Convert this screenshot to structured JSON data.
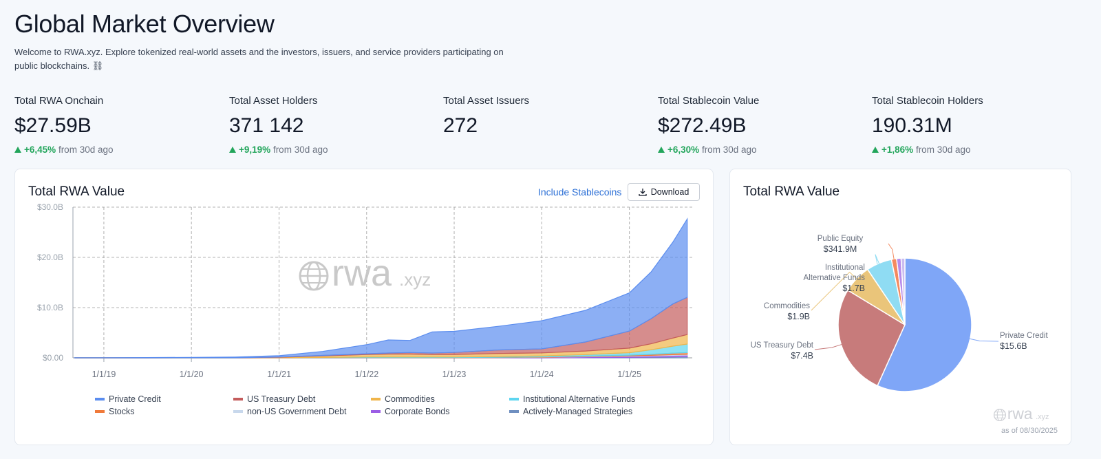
{
  "header": {
    "title": "Global Market Overview",
    "description": "Welcome to RWA.xyz. Explore tokenized real-world assets and the investors, issuers, and service providers participating on public blockchains. ⛓"
  },
  "stats": [
    {
      "label": "Total RWA Onchain",
      "value": "$27.59B",
      "change": "+6,45%",
      "period": "from 30d ago"
    },
    {
      "label": "Total Asset Holders",
      "value": "371 142",
      "change": "+9,19%",
      "period": "from 30d ago"
    },
    {
      "label": "Total Asset Issuers",
      "value": "272"
    },
    {
      "label": "Total Stablecoin Value",
      "value": "$272.49B",
      "change": "+6,30%",
      "period": "from 30d ago"
    },
    {
      "label": "Total Stablecoin Holders",
      "value": "190.31M",
      "change": "+1,86%",
      "period": "from 30d ago"
    }
  ],
  "controls": {
    "include_stablecoins": "Include Stablecoins",
    "download": "Download"
  },
  "watermark": {
    "name": "rwa",
    "suffix": ".xyz"
  },
  "as_of": "as of 08/30/2025",
  "chart_data": [
    {
      "type": "area",
      "stacked": true,
      "title": "Total RWA Value",
      "grid": true,
      "x": [
        "2018-09-01",
        "2019-01-01",
        "2019-07-01",
        "2020-01-01",
        "2020-07-01",
        "2021-01-01",
        "2021-07-01",
        "2022-01-01",
        "2022-04-01",
        "2022-07-01",
        "2022-10-01",
        "2023-01-01",
        "2023-07-01",
        "2024-01-01",
        "2024-07-01",
        "2025-01-01",
        "2025-04-01",
        "2025-07-01",
        "2025-08-30"
      ],
      "xlim": [
        "2018-08-25",
        "2025-09-20"
      ],
      "xticks": [
        {
          "value": "2019-01-01",
          "label": "1/1/19"
        },
        {
          "value": "2020-01-01",
          "label": "1/1/20"
        },
        {
          "value": "2021-01-01",
          "label": "1/1/21"
        },
        {
          "value": "2022-01-01",
          "label": "1/1/22"
        },
        {
          "value": "2023-01-01",
          "label": "1/1/23"
        },
        {
          "value": "2024-01-01",
          "label": "1/1/24"
        },
        {
          "value": "2025-01-01",
          "label": "1/1/25"
        }
      ],
      "ylim": [
        0,
        30
      ],
      "yticks": [
        {
          "value": 0,
          "label": "$0.00"
        },
        {
          "value": 10,
          "label": "$10.0B"
        },
        {
          "value": 20,
          "label": "$20.0B"
        },
        {
          "value": 30,
          "label": "$30.0B"
        }
      ],
      "series": [
        {
          "name": "Private Credit",
          "color": "#5b8def",
          "values": [
            0.02,
            0.03,
            0.05,
            0.08,
            0.15,
            0.25,
            0.8,
            1.8,
            2.6,
            2.4,
            4.2,
            4.2,
            4.7,
            5.6,
            6.3,
            7.6,
            9.3,
            12.3,
            15.6
          ]
        },
        {
          "name": "US Treasury Debt",
          "color": "#c45c5c",
          "values": [
            0,
            0,
            0,
            0,
            0,
            0.05,
            0.1,
            0.15,
            0.2,
            0.3,
            0.3,
            0.4,
            0.7,
            0.8,
            1.8,
            3.4,
            5.0,
            6.8,
            7.4
          ]
        },
        {
          "name": "Commodities",
          "color": "#f0b54a",
          "values": [
            0,
            0,
            0,
            0.01,
            0.02,
            0.1,
            0.3,
            0.5,
            0.6,
            0.6,
            0.5,
            0.5,
            0.6,
            0.6,
            0.7,
            0.9,
            1.2,
            1.6,
            1.9
          ]
        },
        {
          "name": "Institutional Alternative Funds",
          "color": "#5dd5f0",
          "values": [
            0,
            0,
            0,
            0,
            0,
            0.01,
            0.05,
            0.1,
            0.1,
            0.1,
            0.1,
            0.1,
            0.15,
            0.2,
            0.3,
            0.5,
            0.9,
            1.4,
            1.7
          ]
        },
        {
          "name": "Stocks",
          "color": "#f07a3a",
          "values": [
            0,
            0,
            0,
            0,
            0,
            0.01,
            0.03,
            0.05,
            0.05,
            0.05,
            0.05,
            0.05,
            0.05,
            0.06,
            0.1,
            0.15,
            0.2,
            0.3,
            0.34
          ]
        },
        {
          "name": "non-US Government Debt",
          "color": "#c8d8ec",
          "values": [
            0,
            0,
            0,
            0,
            0,
            0,
            0,
            0,
            0,
            0,
            0,
            0,
            0.01,
            0.02,
            0.05,
            0.08,
            0.1,
            0.13,
            0.15
          ]
        },
        {
          "name": "Corporate Bonds",
          "color": "#9b5de5",
          "values": [
            0,
            0,
            0,
            0,
            0,
            0,
            0,
            0.01,
            0.01,
            0.01,
            0.01,
            0.02,
            0.05,
            0.1,
            0.15,
            0.2,
            0.25,
            0.3,
            0.3
          ]
        },
        {
          "name": "Actively-Managed Strategies",
          "color": "#6f8fc0",
          "values": [
            0,
            0,
            0,
            0,
            0,
            0,
            0,
            0,
            0,
            0,
            0,
            0,
            0,
            0,
            0.05,
            0.1,
            0.15,
            0.2,
            0.25
          ]
        }
      ]
    },
    {
      "type": "pie",
      "title": "Total RWA Value",
      "categories": [
        "Private Credit",
        "US Treasury Debt",
        "Commodities",
        "Institutional Alternative Funds",
        "Public Equity",
        null,
        null
      ],
      "values": [
        15.6,
        7.4,
        1.9,
        1.7,
        0.3419,
        0.3,
        0.25
      ],
      "value_labels": [
        "$15.6B",
        "$7.4B",
        "$1.9B",
        "$1.7B",
        "$341.9M",
        null,
        null
      ],
      "colors": [
        "#7fa6f7",
        "#c77b7b",
        "#eac57a",
        "#8fdcf3",
        "#f4895f",
        "#b78bea",
        "#cbbdf0"
      ]
    }
  ]
}
